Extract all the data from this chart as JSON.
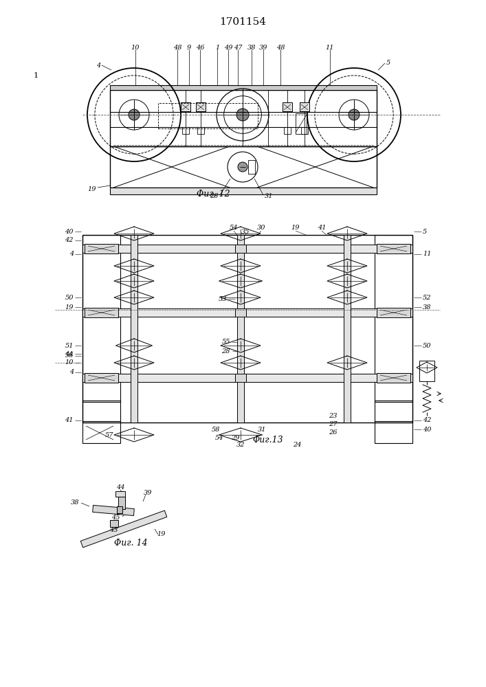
{
  "title": "1701154",
  "fig12_label": "Φиг. 12",
  "fig13_label": "Φиг.13",
  "fig14_label": "Φиг. 14",
  "bg_color": "#ffffff"
}
